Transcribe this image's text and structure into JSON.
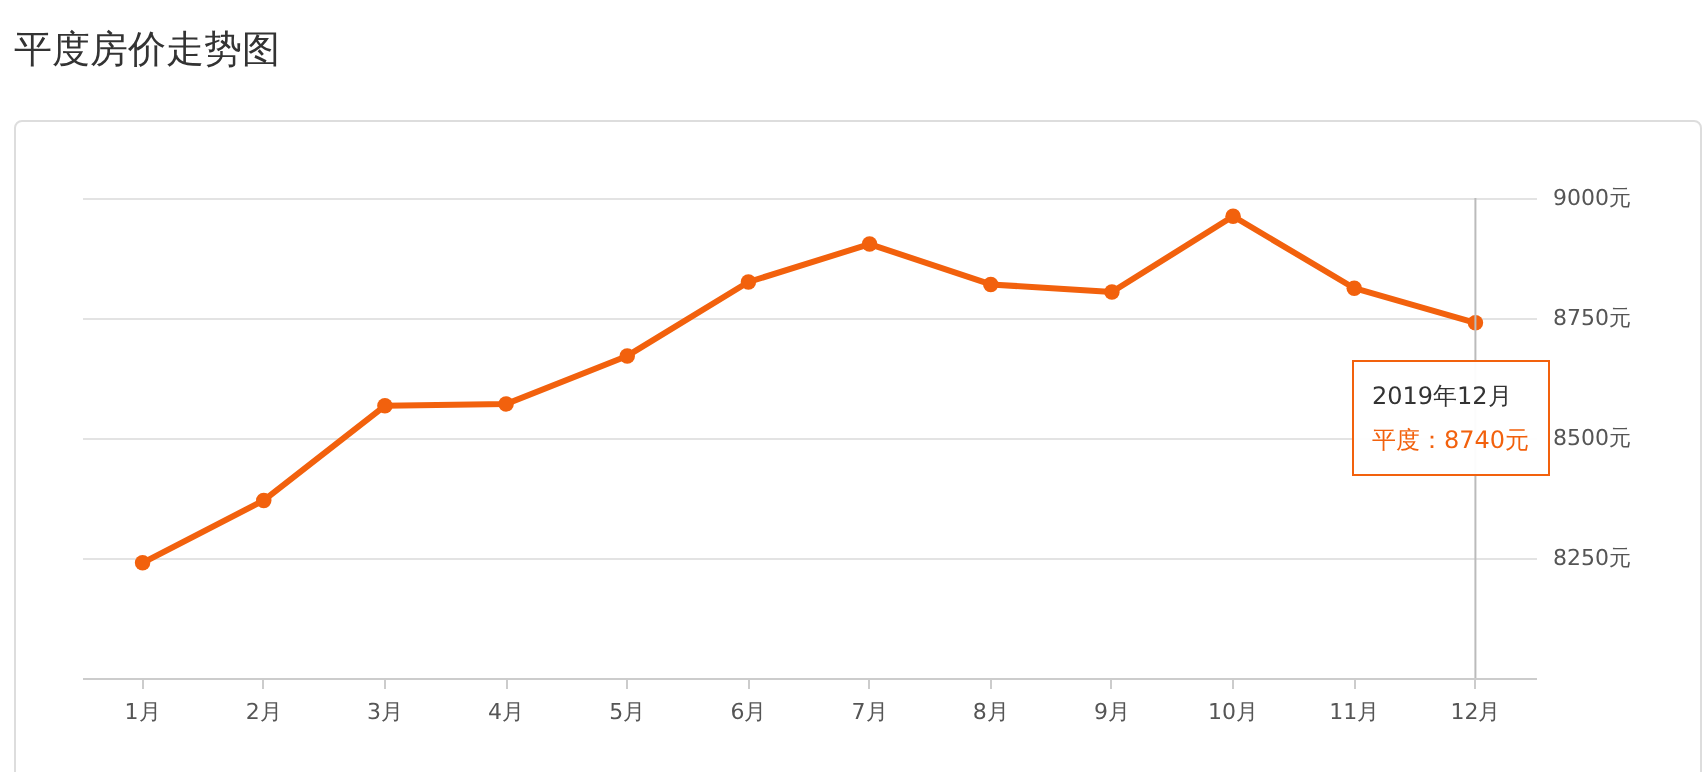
{
  "chart_data": {
    "type": "line",
    "title": "平度房价走势图",
    "categories": [
      "1月",
      "2月",
      "3月",
      "4月",
      "5月",
      "6月",
      "7月",
      "8月",
      "9月",
      "10月",
      "11月",
      "12月"
    ],
    "series": [
      {
        "color": "#f2610d",
        "values": [
          8240,
          8370,
          8567,
          8571,
          8671,
          8825,
          8904,
          8820,
          8804,
          8962,
          8812,
          8740
        ]
      }
    ],
    "ylim": [
      8000,
      9000
    ],
    "yticks": [
      {
        "value": 8250,
        "label": "8250元"
      },
      {
        "value": 8500,
        "label": "8500元"
      },
      {
        "value": 8750,
        "label": "8750元"
      },
      {
        "value": 9000,
        "label": "9000元"
      }
    ],
    "grid": "y",
    "marker": "circle",
    "ref_lines": [
      {
        "axis": "x",
        "value": "12月",
        "label": null,
        "color": "#bbbbbb"
      }
    ],
    "annotations": [
      "2019年12月",
      "平度：8740元"
    ]
  }
}
